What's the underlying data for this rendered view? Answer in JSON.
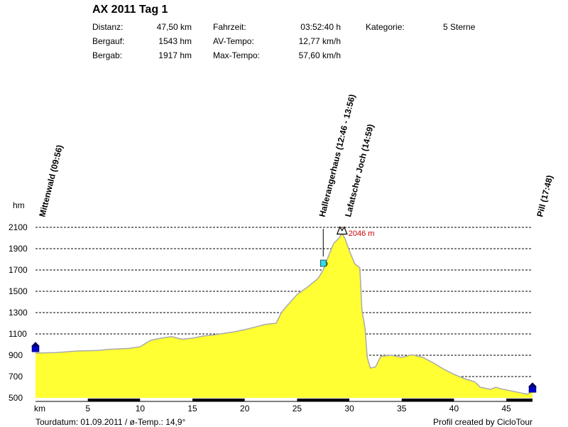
{
  "title": "AX 2011 Tag 1",
  "stats": {
    "distanz_label": "Distanz:",
    "distanz_value": "47,50 km",
    "bergauf_label": "Bergauf:",
    "bergauf_value": "1543 hm",
    "bergab_label": "Bergab:",
    "bergab_value": "1917 hm",
    "fahrzeit_label": "Fahrzeit:",
    "fahrzeit_value": "03:52:40 h",
    "avtempo_label": "AV-Tempo:",
    "avtempo_value": "12,77 km/h",
    "maxtempo_label": "Max-Tempo:",
    "maxtempo_value": "57,60 km/h",
    "kategorie_label": "Kategorie:",
    "kategorie_value": "5 Sterne"
  },
  "footer": {
    "left": "Tourdatum: 01.09.2011  /  ø-Temp.: 14,9°",
    "right": "Profil created by CicloTour"
  },
  "chart_data": {
    "type": "area",
    "ylabel": "hm",
    "xlabel": "km",
    "ylim": [
      500,
      2100
    ],
    "xlim": [
      0,
      47.5
    ],
    "yticks": [
      2100,
      1900,
      1700,
      1500,
      1300,
      1100,
      900,
      700,
      500
    ],
    "xticks": [
      5,
      10,
      15,
      20,
      25,
      30,
      35,
      40,
      45
    ],
    "grid": true,
    "fill_color": "#ffff33",
    "line_color": "#aaaaaa",
    "series": [
      {
        "x": [
          0,
          2,
          4,
          6,
          7,
          9,
          10,
          11,
          12,
          13,
          14,
          15,
          16,
          17,
          18,
          19,
          20,
          21,
          22,
          23,
          23.5,
          24,
          25,
          26,
          27,
          27.5,
          28,
          28.5,
          29,
          29.3,
          29.6,
          30,
          30.5,
          31,
          31.2,
          31.5,
          31.7,
          32,
          32.5,
          33,
          34,
          35,
          36,
          37,
          38,
          39,
          40,
          41,
          42,
          42.5,
          43,
          43.5,
          44,
          44.5,
          45,
          46,
          47,
          47.5
        ],
        "y": [
          920,
          925,
          940,
          945,
          955,
          965,
          980,
          1040,
          1060,
          1075,
          1050,
          1060,
          1080,
          1090,
          1105,
          1120,
          1140,
          1165,
          1190,
          1200,
          1300,
          1360,
          1470,
          1540,
          1620,
          1700,
          1830,
          1950,
          2000,
          2046,
          1990,
          1880,
          1760,
          1720,
          1320,
          1150,
          880,
          780,
          790,
          890,
          900,
          880,
          905,
          880,
          830,
          770,
          720,
          680,
          650,
          600,
          590,
          580,
          600,
          585,
          575,
          555,
          535,
          560
        ]
      }
    ],
    "waypoints": [
      {
        "label": "Mittenwald (09:56)",
        "x": 0,
        "y": 965,
        "marker": "home"
      },
      {
        "label": "Hallerangerhaus (12:46 - 13:56)",
        "x": 27.5,
        "y": 1760,
        "marker": "cup"
      },
      {
        "label": "Lafatscher Joch (14:59)",
        "x": 29.3,
        "y": 2090,
        "marker": "pass"
      },
      {
        "label": "Pill (17:48)",
        "x": 47.5,
        "y": 585,
        "marker": "home"
      }
    ],
    "max_annotation": {
      "x": 29.3,
      "y": 2046,
      "text": "2046 m"
    }
  }
}
